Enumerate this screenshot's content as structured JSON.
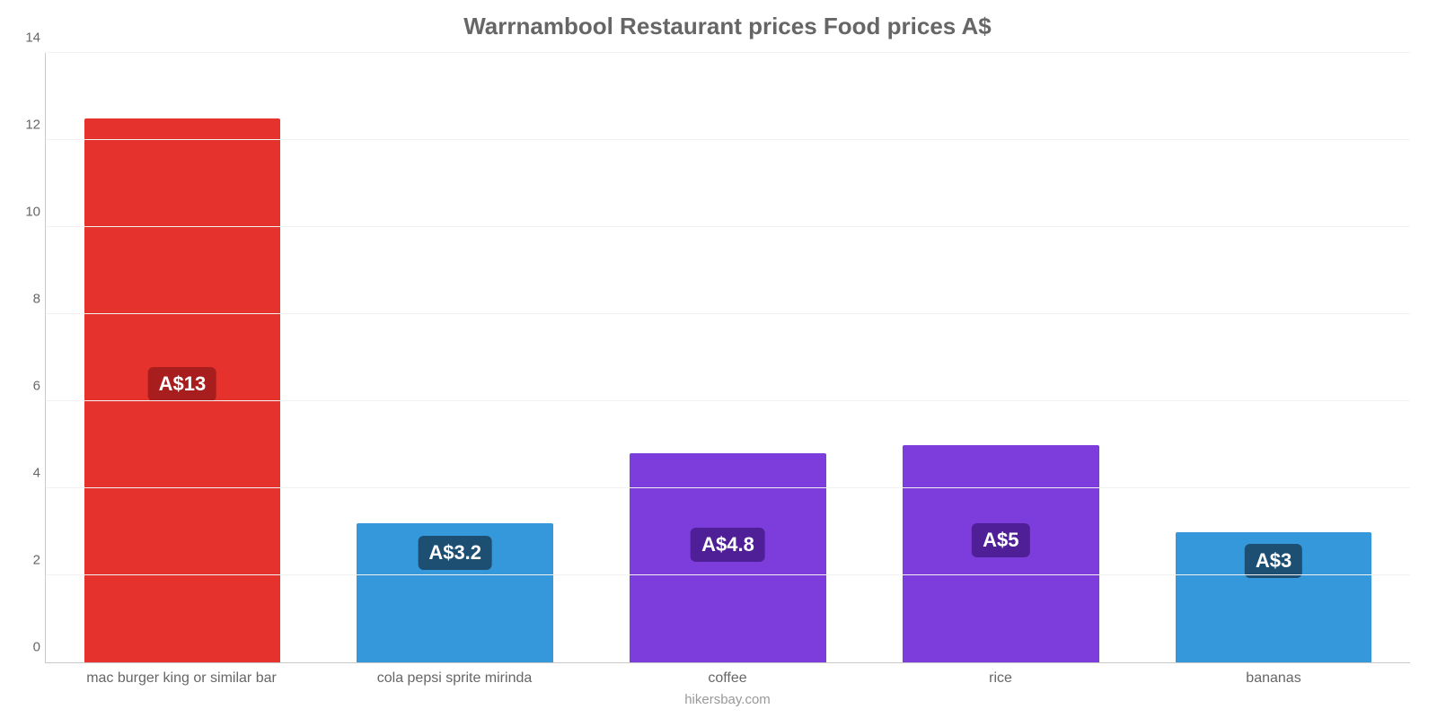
{
  "chart": {
    "type": "bar",
    "title": "Warrnambool Restaurant prices Food prices A$",
    "title_color": "#666666",
    "title_fontsize": 26,
    "background_color": "#ffffff",
    "grid_color": "#f2f2f2",
    "axis_color": "#c9c9c9",
    "tick_color": "#666666",
    "tick_fontsize": 15,
    "xlabel_fontsize": 16,
    "ylim_min": 0,
    "ylim_max": 14,
    "ytick_step": 2,
    "yticks": [
      "0",
      "2",
      "4",
      "6",
      "8",
      "10",
      "12",
      "14"
    ],
    "bar_width_ratio": 0.72,
    "value_badge_fontsize": 22,
    "caption": "hikersbay.com",
    "caption_color": "#999999",
    "categories": [
      "mac burger king or similar bar",
      "cola pepsi sprite mirinda",
      "coffee",
      "rice",
      "bananas"
    ],
    "series": [
      {
        "value": 12.5,
        "label": "A$13",
        "bar_color": "#e5322d",
        "badge_color": "#a81e1e"
      },
      {
        "value": 3.2,
        "label": "A$3.2",
        "bar_color": "#3498db",
        "badge_color": "#1c4f72"
      },
      {
        "value": 4.8,
        "label": "A$4.8",
        "bar_color": "#7d3cdc",
        "badge_color": "#4f1f97"
      },
      {
        "value": 5.0,
        "label": "A$5",
        "bar_color": "#7d3cdc",
        "badge_color": "#4f1f97"
      },
      {
        "value": 3.0,
        "label": "A$3",
        "bar_color": "#3498db",
        "badge_color": "#1c4f72"
      }
    ]
  }
}
